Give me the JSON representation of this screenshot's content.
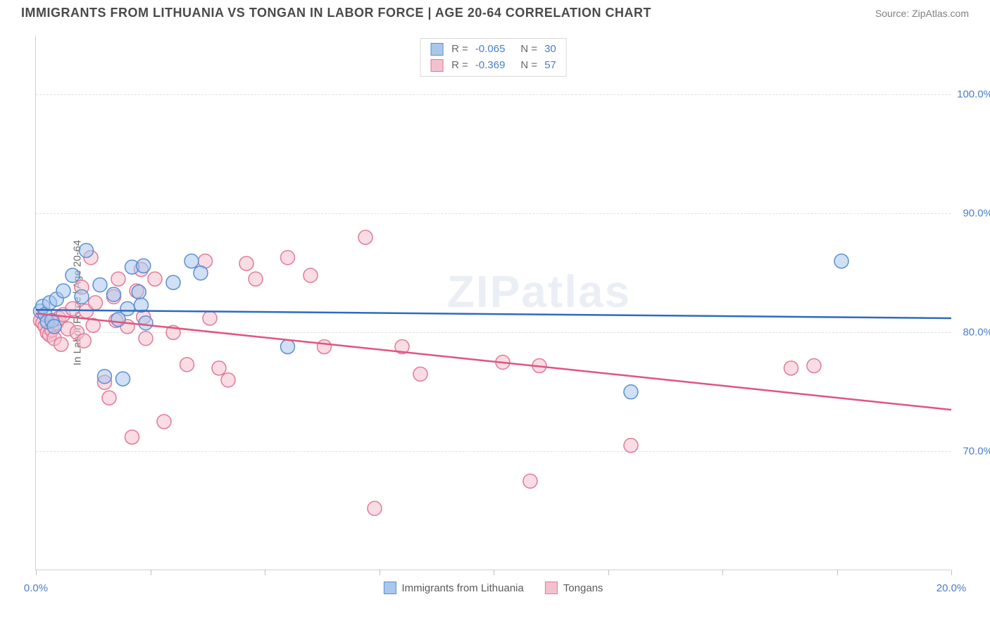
{
  "title": "IMMIGRANTS FROM LITHUANIA VS TONGAN IN LABOR FORCE | AGE 20-64 CORRELATION CHART",
  "source": "Source: ZipAtlas.com",
  "watermark": "ZIPatlas",
  "y_axis_label": "In Labor Force | Age 20-64",
  "chart": {
    "type": "scatter",
    "xlim": [
      0,
      20
    ],
    "ylim": [
      60,
      105
    ],
    "x_ticks": [
      0,
      2.5,
      5,
      7.5,
      10,
      12.5,
      15,
      17.5,
      20
    ],
    "x_tick_labels": {
      "0": "0.0%",
      "20": "20.0%"
    },
    "y_grid": [
      70,
      80,
      90,
      100
    ],
    "y_tick_labels": {
      "70": "70.0%",
      "80": "80.0%",
      "90": "90.0%",
      "100": "100.0%"
    },
    "background_color": "#ffffff",
    "grid_color": "#e0e0e0",
    "axis_color": "#d0d0d0",
    "tick_label_color": "#4a7ec9",
    "marker_radius": 10,
    "marker_opacity": 0.55,
    "line_width": 2.5
  },
  "series": [
    {
      "key": "lithuania",
      "label": "Immigrants from Lithuania",
      "R": "-0.065",
      "N": "30",
      "fill": "#a9c7ec",
      "stroke": "#5b8fd0",
      "line_color": "#2e6bc0",
      "trend": {
        "x0": 0,
        "y0": 81.9,
        "x1": 20,
        "y1": 81.2
      },
      "points": [
        [
          0.1,
          81.8
        ],
        [
          0.15,
          82.2
        ],
        [
          0.2,
          81.5
        ],
        [
          0.25,
          80.9
        ],
        [
          0.3,
          82.5
        ],
        [
          0.35,
          81.0
        ],
        [
          0.4,
          80.5
        ],
        [
          0.45,
          82.8
        ],
        [
          0.6,
          83.5
        ],
        [
          0.8,
          84.8
        ],
        [
          1.0,
          83.0
        ],
        [
          1.1,
          86.9
        ],
        [
          1.4,
          84.0
        ],
        [
          1.5,
          76.3
        ],
        [
          1.9,
          76.1
        ],
        [
          1.7,
          83.2
        ],
        [
          1.8,
          81.1
        ],
        [
          2.0,
          82.0
        ],
        [
          2.1,
          85.5
        ],
        [
          2.25,
          83.4
        ],
        [
          2.3,
          82.3
        ],
        [
          2.35,
          85.6
        ],
        [
          2.4,
          80.8
        ],
        [
          3.0,
          84.2
        ],
        [
          3.4,
          86.0
        ],
        [
          3.6,
          85.0
        ],
        [
          5.5,
          78.8
        ],
        [
          13.0,
          75.0
        ],
        [
          17.6,
          86.0
        ]
      ]
    },
    {
      "key": "tongans",
      "label": "Tongans",
      "R": "-0.369",
      "N": "57",
      "fill": "#f4c0cd",
      "stroke": "#e27a99",
      "line_color": "#e05580",
      "trend": {
        "x0": 0,
        "y0": 81.6,
        "x1": 20,
        "y1": 73.5
      },
      "points": [
        [
          0.1,
          81.0
        ],
        [
          0.15,
          80.8
        ],
        [
          0.2,
          80.5
        ],
        [
          0.25,
          80.0
        ],
        [
          0.3,
          79.8
        ],
        [
          0.35,
          80.2
        ],
        [
          0.4,
          79.5
        ],
        [
          0.45,
          80.8
        ],
        [
          0.5,
          81.2
        ],
        [
          0.55,
          79.0
        ],
        [
          0.6,
          81.5
        ],
        [
          0.7,
          80.3
        ],
        [
          0.8,
          82.0
        ],
        [
          0.9,
          80.0
        ],
        [
          1.0,
          83.8
        ],
        [
          1.05,
          79.3
        ],
        [
          1.1,
          81.8
        ],
        [
          1.2,
          86.3
        ],
        [
          1.25,
          80.6
        ],
        [
          1.3,
          82.5
        ],
        [
          1.5,
          75.8
        ],
        [
          1.6,
          74.5
        ],
        [
          1.7,
          83.0
        ],
        [
          1.75,
          81.0
        ],
        [
          1.8,
          84.5
        ],
        [
          2.0,
          80.5
        ],
        [
          2.1,
          71.2
        ],
        [
          2.2,
          83.5
        ],
        [
          2.3,
          85.3
        ],
        [
          2.35,
          81.3
        ],
        [
          2.4,
          79.5
        ],
        [
          2.6,
          84.5
        ],
        [
          2.8,
          72.5
        ],
        [
          3.0,
          80.0
        ],
        [
          3.3,
          77.3
        ],
        [
          3.7,
          86.0
        ],
        [
          3.8,
          81.2
        ],
        [
          4.0,
          77.0
        ],
        [
          4.2,
          76.0
        ],
        [
          4.6,
          85.8
        ],
        [
          4.8,
          84.5
        ],
        [
          5.5,
          86.3
        ],
        [
          6.0,
          84.8
        ],
        [
          6.3,
          78.8
        ],
        [
          7.2,
          88.0
        ],
        [
          7.4,
          65.2
        ],
        [
          8.0,
          78.8
        ],
        [
          8.4,
          76.5
        ],
        [
          10.2,
          77.5
        ],
        [
          10.8,
          67.5
        ],
        [
          11.0,
          77.2
        ],
        [
          13.0,
          70.5
        ],
        [
          16.5,
          77.0
        ],
        [
          17.0,
          77.2
        ]
      ]
    }
  ],
  "legend_top_labels": {
    "R": "R =",
    "N": "N ="
  }
}
